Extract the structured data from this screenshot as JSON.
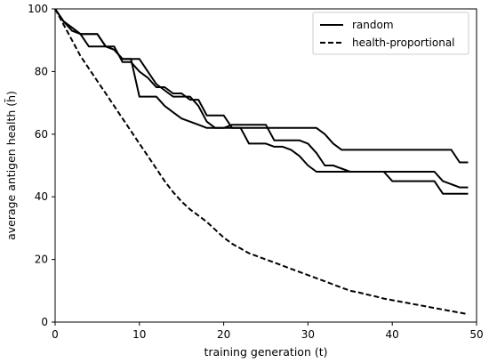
{
  "chart_data": {
    "type": "line",
    "xlabel": "training generation (t)",
    "ylabel": "average antigen health (h̄)",
    "xlim": [
      0,
      50
    ],
    "ylim": [
      0,
      100
    ],
    "xticks": [
      0,
      10,
      20,
      30,
      40,
      50
    ],
    "yticks": [
      0,
      20,
      40,
      60,
      80,
      100
    ],
    "grid": false,
    "legend": {
      "placement": "top-right",
      "entries": [
        {
          "label": "random",
          "style": "solid"
        },
        {
          "label": "health-proportional",
          "style": "dashed"
        }
      ]
    },
    "series": [
      {
        "group": "random",
        "style": "solid",
        "x": [
          0,
          1,
          2,
          3,
          4,
          5,
          6,
          7,
          8,
          9,
          10,
          11,
          12,
          13,
          14,
          15,
          16,
          17,
          18,
          19,
          20,
          21,
          22,
          23,
          24,
          25,
          26,
          27,
          28,
          29,
          30,
          31,
          32,
          33,
          34,
          35,
          36,
          37,
          38,
          39,
          40,
          41,
          42,
          43,
          44,
          45,
          46,
          47,
          48,
          49
        ],
        "y": [
          100,
          96,
          93,
          92,
          92,
          92,
          88,
          88,
          83,
          83,
          80,
          78,
          75,
          75,
          73,
          73,
          71,
          71,
          66,
          66,
          66,
          62,
          62,
          62,
          62,
          62,
          62,
          62,
          62,
          62,
          62,
          62,
          60,
          57,
          55,
          55,
          55,
          55,
          55,
          55,
          55,
          55,
          55,
          55,
          55,
          55,
          55,
          55,
          51,
          51
        ]
      },
      {
        "group": "random",
        "style": "solid",
        "x": [
          0,
          1,
          2,
          3,
          4,
          5,
          6,
          7,
          8,
          9,
          10,
          11,
          12,
          13,
          14,
          15,
          16,
          17,
          18,
          19,
          20,
          21,
          22,
          23,
          24,
          25,
          26,
          27,
          28,
          29,
          30,
          31,
          32,
          33,
          34,
          35,
          36,
          37,
          38,
          39,
          40,
          41,
          42,
          43,
          44,
          45,
          46,
          47,
          48,
          49
        ],
        "y": [
          100,
          96,
          94,
          92,
          88,
          88,
          88,
          87,
          84,
          84,
          84,
          80,
          76,
          74,
          72,
          72,
          72,
          69,
          64,
          62,
          62,
          62,
          62,
          57,
          57,
          57,
          56,
          56,
          55,
          53,
          50,
          48,
          48,
          48,
          48,
          48,
          48,
          48,
          48,
          48,
          48,
          48,
          48,
          48,
          48,
          48,
          45,
          44,
          43,
          43
        ]
      },
      {
        "group": "random",
        "style": "solid",
        "x": [
          0,
          1,
          2,
          3,
          4,
          5,
          6,
          7,
          8,
          9,
          10,
          11,
          12,
          13,
          14,
          15,
          16,
          17,
          18,
          19,
          20,
          21,
          22,
          23,
          24,
          25,
          26,
          27,
          28,
          29,
          30,
          31,
          32,
          33,
          34,
          35,
          36,
          37,
          38,
          39,
          40,
          41,
          42,
          43,
          44,
          45,
          46,
          47,
          48,
          49
        ],
        "y": [
          100,
          96,
          94,
          92,
          92,
          92,
          88,
          87,
          84,
          84,
          72,
          72,
          72,
          69,
          67,
          65,
          64,
          63,
          62,
          62,
          62,
          63,
          63,
          63,
          63,
          63,
          58,
          58,
          58,
          58,
          57,
          54,
          50,
          50,
          49,
          48,
          48,
          48,
          48,
          48,
          45,
          45,
          45,
          45,
          45,
          45,
          41,
          41,
          41,
          41
        ]
      },
      {
        "group": "health-proportional",
        "style": "dashed",
        "x": [
          0,
          1,
          2,
          3,
          4,
          5,
          6,
          7,
          8,
          9,
          10,
          11,
          12,
          13,
          14,
          15,
          16,
          17,
          18,
          19,
          20,
          21,
          22,
          23,
          24,
          25,
          26,
          27,
          28,
          29,
          30,
          31,
          32,
          33,
          34,
          35,
          36,
          37,
          38,
          39,
          40,
          41,
          42,
          43,
          44,
          45,
          46,
          47,
          48,
          49
        ],
        "y": [
          100,
          95,
          90,
          85,
          81,
          77,
          73,
          69,
          65,
          61,
          57,
          53,
          49,
          45,
          41.5,
          38.5,
          36,
          34,
          32,
          29.5,
          27,
          25,
          23.5,
          22,
          21,
          20,
          19,
          18,
          17,
          16,
          15,
          14,
          13,
          12,
          11,
          10,
          9.5,
          8.8,
          8.2,
          7.5,
          7,
          6.5,
          6,
          5.5,
          5,
          4.5,
          4,
          3.5,
          3,
          2.5
        ]
      }
    ]
  }
}
